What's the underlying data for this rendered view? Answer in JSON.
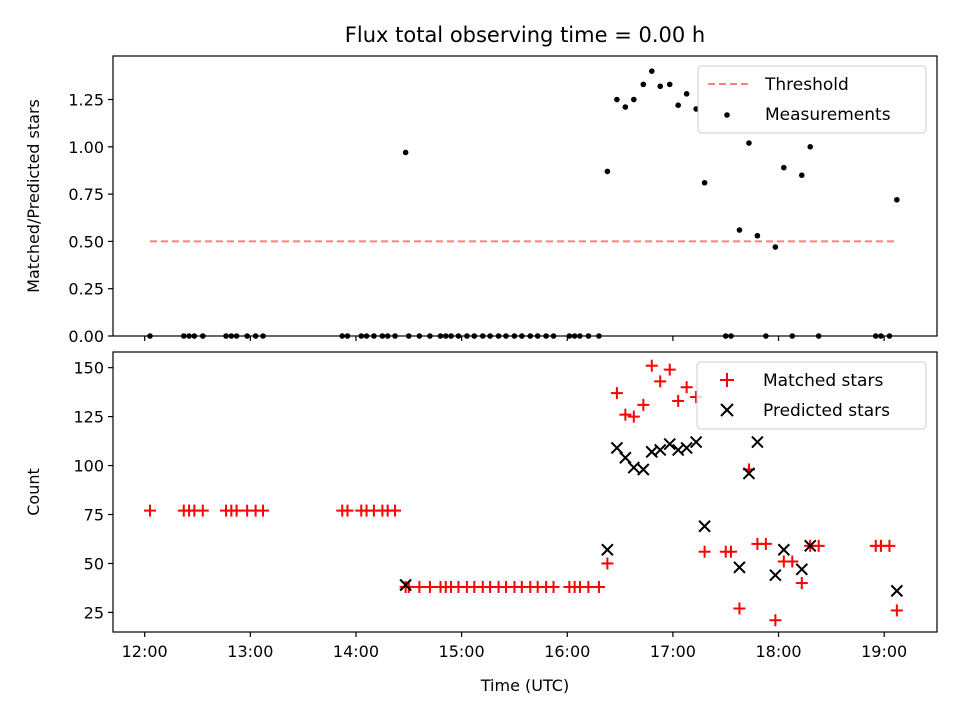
{
  "title": "Flux total observing time = 0.00 h",
  "colors": {
    "threshold": "#ff7f7f",
    "measure": "#000000",
    "matched": "#ff0000",
    "predicted": "#000000"
  },
  "chart_data": [
    {
      "type": "scatter",
      "ylabel": "Matched/Predicted stars",
      "xlim": [
        11.7,
        19.5
      ],
      "ylim": [
        0,
        1.48
      ],
      "xticks": [
        12,
        13,
        14,
        15,
        16,
        17,
        18,
        19
      ],
      "yticks": [
        0,
        0.25,
        0.5,
        0.75,
        1.0,
        1.25
      ],
      "ytick_labels": [
        "0.00",
        "0.25",
        "0.50",
        "0.75",
        "1.00",
        "1.25"
      ],
      "legend_position": "top-right",
      "threshold": {
        "name": "Threshold",
        "y": 0.5,
        "x": [
          12.05,
          19.12
        ]
      },
      "series": [
        {
          "name": "Measurements",
          "points": [
            [
              12.05,
              0
            ],
            [
              12.37,
              0
            ],
            [
              12.42,
              0
            ],
            [
              12.47,
              0
            ],
            [
              12.55,
              0
            ],
            [
              12.77,
              0
            ],
            [
              12.82,
              0
            ],
            [
              12.87,
              0
            ],
            [
              12.97,
              0
            ],
            [
              13.05,
              0
            ],
            [
              13.12,
              0
            ],
            [
              13.87,
              0
            ],
            [
              13.92,
              0
            ],
            [
              14.05,
              0
            ],
            [
              14.1,
              0
            ],
            [
              14.17,
              0
            ],
            [
              14.25,
              0
            ],
            [
              14.3,
              0
            ],
            [
              14.37,
              0
            ],
            [
              14.47,
              0.97
            ],
            [
              14.5,
              0
            ],
            [
              14.6,
              0
            ],
            [
              14.7,
              0
            ],
            [
              14.8,
              0
            ],
            [
              14.85,
              0
            ],
            [
              14.9,
              0
            ],
            [
              14.97,
              0
            ],
            [
              15.05,
              0
            ],
            [
              15.12,
              0
            ],
            [
              15.2,
              0
            ],
            [
              15.27,
              0
            ],
            [
              15.35,
              0
            ],
            [
              15.42,
              0
            ],
            [
              15.5,
              0
            ],
            [
              15.57,
              0
            ],
            [
              15.65,
              0
            ],
            [
              15.72,
              0
            ],
            [
              15.8,
              0
            ],
            [
              15.87,
              0
            ],
            [
              16.02,
              0
            ],
            [
              16.07,
              0
            ],
            [
              16.12,
              0
            ],
            [
              16.2,
              0
            ],
            [
              16.3,
              0
            ],
            [
              16.38,
              0.87
            ],
            [
              16.47,
              1.25
            ],
            [
              16.55,
              1.21
            ],
            [
              16.63,
              1.25
            ],
            [
              16.72,
              1.33
            ],
            [
              16.8,
              1.4
            ],
            [
              16.88,
              1.32
            ],
            [
              16.97,
              1.33
            ],
            [
              17.05,
              1.22
            ],
            [
              17.13,
              1.28
            ],
            [
              17.22,
              1.2
            ],
            [
              17.3,
              0.81
            ],
            [
              17.5,
              0
            ],
            [
              17.55,
              0
            ],
            [
              17.63,
              0.56
            ],
            [
              17.72,
              1.02
            ],
            [
              17.8,
              0.53
            ],
            [
              17.88,
              0
            ],
            [
              17.97,
              0.47
            ],
            [
              18.05,
              0.89
            ],
            [
              18.13,
              0
            ],
            [
              18.22,
              0.85
            ],
            [
              18.3,
              1.0
            ],
            [
              18.38,
              0
            ],
            [
              18.92,
              0
            ],
            [
              18.97,
              0
            ],
            [
              19.05,
              0
            ],
            [
              19.12,
              0.72
            ]
          ]
        }
      ]
    },
    {
      "type": "scatter",
      "xlabel": "Time (UTC)",
      "ylabel": "Count",
      "xlim": [
        11.7,
        19.5
      ],
      "ylim": [
        15,
        158
      ],
      "xticks": [
        12,
        13,
        14,
        15,
        16,
        17,
        18,
        19
      ],
      "xtick_labels": [
        "12:00",
        "13:00",
        "14:00",
        "15:00",
        "16:00",
        "17:00",
        "18:00",
        "19:00"
      ],
      "yticks": [
        25,
        50,
        75,
        100,
        125,
        150
      ],
      "ytick_labels": [
        "25",
        "50",
        "75",
        "100",
        "125",
        "150"
      ],
      "legend_position": "top-right",
      "series": [
        {
          "name": "Matched stars",
          "marker": "plus",
          "points": [
            [
              12.05,
              77
            ],
            [
              12.37,
              77
            ],
            [
              12.42,
              77
            ],
            [
              12.47,
              77
            ],
            [
              12.55,
              77
            ],
            [
              12.77,
              77
            ],
            [
              12.82,
              77
            ],
            [
              12.87,
              77
            ],
            [
              12.97,
              77
            ],
            [
              13.05,
              77
            ],
            [
              13.12,
              77
            ],
            [
              13.87,
              77
            ],
            [
              13.92,
              77
            ],
            [
              14.05,
              77
            ],
            [
              14.1,
              77
            ],
            [
              14.17,
              77
            ],
            [
              14.25,
              77
            ],
            [
              14.3,
              77
            ],
            [
              14.37,
              77
            ],
            [
              14.47,
              38
            ],
            [
              14.5,
              38
            ],
            [
              14.6,
              38
            ],
            [
              14.7,
              38
            ],
            [
              14.8,
              38
            ],
            [
              14.85,
              38
            ],
            [
              14.9,
              38
            ],
            [
              14.97,
              38
            ],
            [
              15.05,
              38
            ],
            [
              15.12,
              38
            ],
            [
              15.2,
              38
            ],
            [
              15.27,
              38
            ],
            [
              15.35,
              38
            ],
            [
              15.42,
              38
            ],
            [
              15.5,
              38
            ],
            [
              15.57,
              38
            ],
            [
              15.65,
              38
            ],
            [
              15.72,
              38
            ],
            [
              15.8,
              38
            ],
            [
              15.87,
              38
            ],
            [
              16.02,
              38
            ],
            [
              16.07,
              38
            ],
            [
              16.12,
              38
            ],
            [
              16.2,
              38
            ],
            [
              16.3,
              38
            ],
            [
              16.38,
              50
            ],
            [
              16.47,
              137
            ],
            [
              16.55,
              126
            ],
            [
              16.63,
              125
            ],
            [
              16.72,
              131
            ],
            [
              16.8,
              151
            ],
            [
              16.88,
              143
            ],
            [
              16.97,
              149
            ],
            [
              17.05,
              133
            ],
            [
              17.13,
              140
            ],
            [
              17.22,
              135
            ],
            [
              17.3,
              56
            ],
            [
              17.5,
              56
            ],
            [
              17.55,
              56
            ],
            [
              17.63,
              27
            ],
            [
              17.72,
              98
            ],
            [
              17.8,
              60
            ],
            [
              17.88,
              60
            ],
            [
              17.97,
              21
            ],
            [
              18.05,
              51
            ],
            [
              18.13,
              51
            ],
            [
              18.22,
              40
            ],
            [
              18.3,
              59
            ],
            [
              18.38,
              59
            ],
            [
              18.92,
              59
            ],
            [
              18.97,
              59
            ],
            [
              19.05,
              59
            ],
            [
              19.12,
              26
            ]
          ]
        },
        {
          "name": "Predicted stars",
          "marker": "x",
          "points": [
            [
              14.47,
              39
            ],
            [
              16.38,
              57
            ],
            [
              16.47,
              109
            ],
            [
              16.55,
              104
            ],
            [
              16.63,
              99
            ],
            [
              16.72,
              98
            ],
            [
              16.8,
              107
            ],
            [
              16.88,
              108
            ],
            [
              16.97,
              111
            ],
            [
              17.05,
              108
            ],
            [
              17.13,
              109
            ],
            [
              17.22,
              112
            ],
            [
              17.3,
              69
            ],
            [
              17.63,
              48
            ],
            [
              17.72,
              96
            ],
            [
              17.8,
              112
            ],
            [
              17.97,
              44
            ],
            [
              18.05,
              57
            ],
            [
              18.22,
              47
            ],
            [
              18.3,
              59
            ],
            [
              19.12,
              36
            ]
          ]
        }
      ]
    }
  ]
}
